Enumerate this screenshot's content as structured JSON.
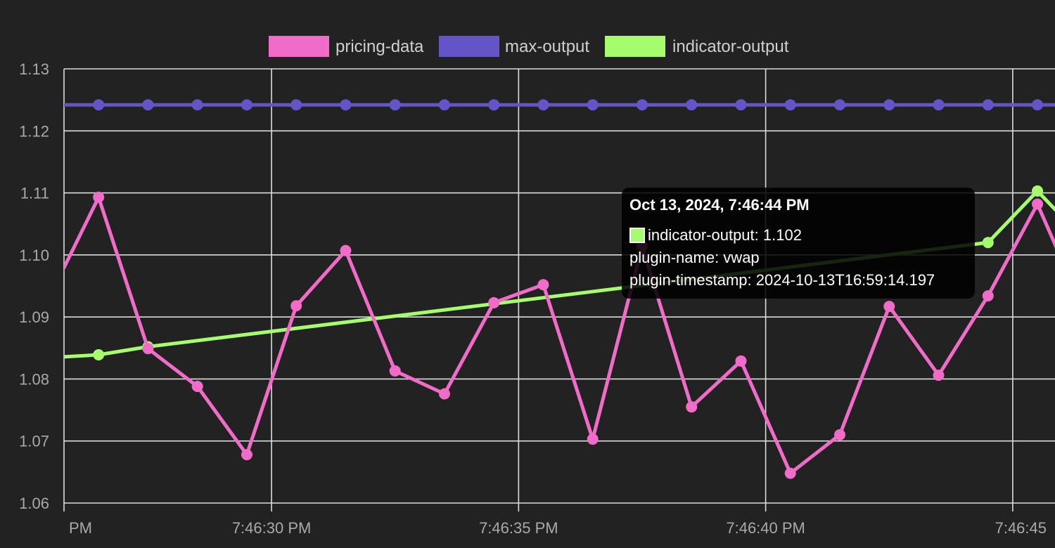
{
  "chart_data": {
    "type": "line",
    "legend_position": "top",
    "grid": true,
    "y_axis": {
      "ticks": [
        "1.13",
        "1.12",
        "1.11",
        "1.10",
        "1.09",
        "1.08",
        "1.07",
        "1.06"
      ],
      "ylim": [
        1.06,
        1.13
      ]
    },
    "x_axis": {
      "ticks": [
        "PM",
        "7:46:30 PM",
        "7:46:35 PM",
        "7:46:40 PM",
        "7:46:45"
      ],
      "tick_times": [
        25.8,
        30,
        35,
        40,
        45
      ],
      "xlim": [
        25.8,
        45.4
      ],
      "unit": "seconds after 7:46 PM"
    },
    "series": [
      {
        "name": "pricing-data",
        "color": "#f06cc8",
        "x": [
          25.0,
          26.5,
          27.5,
          28.5,
          29.5,
          30.5,
          31.5,
          32.5,
          33.5,
          34.5,
          35.5,
          36.5,
          37.5,
          38.5,
          39.5,
          40.5,
          41.5,
          42.5,
          43.5,
          44.5,
          45.5,
          46.5
        ],
        "values": [
          1.085,
          1.1093,
          1.0849,
          1.0788,
          1.0678,
          1.0918,
          1.1007,
          1.0813,
          1.0776,
          1.0923,
          1.0952,
          1.0703,
          1.1014,
          1.0755,
          1.0829,
          1.0648,
          1.071,
          1.0917,
          1.0806,
          1.0934,
          1.1082,
          1.09
        ]
      },
      {
        "name": "max-output",
        "color": "#6354c8",
        "x": [
          25.0,
          26.5,
          27.5,
          28.5,
          29.5,
          30.5,
          31.5,
          32.5,
          33.5,
          34.5,
          35.5,
          36.5,
          37.5,
          38.5,
          39.5,
          40.5,
          41.5,
          42.5,
          43.5,
          44.5,
          45.5,
          46.5
        ],
        "values": [
          1.1242,
          1.1242,
          1.1242,
          1.1242,
          1.1242,
          1.1242,
          1.1242,
          1.1242,
          1.1242,
          1.1242,
          1.1242,
          1.1242,
          1.1242,
          1.1242,
          1.1242,
          1.1242,
          1.1242,
          1.1242,
          1.1242,
          1.1242,
          1.1242,
          1.1242
        ]
      },
      {
        "name": "indicator-output",
        "color": "#a5fc6c",
        "x": [
          25.0,
          26.5,
          27.5,
          44.5,
          45.5,
          46.5
        ],
        "values": [
          1.0832,
          1.0839,
          1.0852,
          1.102,
          1.1103,
          1.102
        ]
      }
    ],
    "highlight_series": "indicator-output",
    "highlight_index": 3
  },
  "legend": [
    {
      "label": "pricing-data",
      "color": "#f06cc8"
    },
    {
      "label": "max-output",
      "color": "#6354c8"
    },
    {
      "label": "indicator-output",
      "color": "#a5fc6c"
    }
  ],
  "tooltip": {
    "title": "Oct 13, 2024, 7:46:44 PM",
    "swatch_color": "#a5fc6c",
    "line1": "indicator-output: 1.102",
    "line2": "plugin-name: vwap",
    "line3": "plugin-timestamp: 2024-10-13T16:59:14.197"
  }
}
